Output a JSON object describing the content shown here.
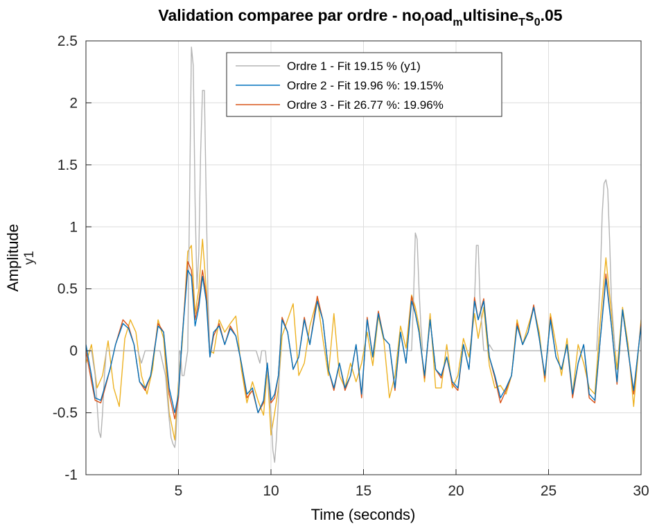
{
  "chart_data": {
    "type": "line",
    "title": "Validation comparee par ordre - no_load_multisine_T_s_0.05",
    "title_parts": {
      "a": "Validation comparee par ordre - no",
      "sub1": "l",
      "b": "oad",
      "sub2": "m",
      "c": "ultisine",
      "sub3": "T",
      "d": "s",
      "sub4": "0",
      "e": ".05"
    },
    "xlabel": "Time (seconds)",
    "ylabel": "Amplitude",
    "ylabel2": "y1",
    "xlim": [
      0,
      30
    ],
    "ylim": [
      -1,
      2.5
    ],
    "x_ticks": [
      "5",
      "10",
      "15",
      "20",
      "25",
      "30"
    ],
    "x_tick_values": [
      5,
      10,
      15,
      20,
      25,
      30
    ],
    "y_ticks": [
      "-1",
      "-0.5",
      "0",
      "0.5",
      "1",
      "1.5",
      "2",
      "2.5"
    ],
    "y_tick_values": [
      -1,
      -0.5,
      0,
      0.5,
      1,
      1.5,
      2,
      2.5
    ],
    "grid": true,
    "legend_position": "top-center",
    "series": [
      {
        "name": "Ordre 1 - Fit 19.15 % (y1)",
        "color": "#b3b3b3",
        "x": [
          0,
          0.3,
          0.5,
          0.7,
          0.8,
          0.9,
          1.0,
          1.1,
          1.5,
          2,
          2.5,
          2.8,
          3,
          3.2,
          3.5,
          4,
          4.3,
          4.5,
          4.6,
          4.7,
          4.8,
          4.85,
          5,
          5.05,
          5.1,
          5.2,
          5.3,
          5.5,
          5.6,
          5.7,
          5.8,
          5.9,
          6.0,
          6.1,
          6.2,
          6.3,
          6.4,
          6.5,
          6.6,
          6.7,
          6.8,
          6.9,
          7,
          7.5,
          8,
          8.5,
          9,
          9.2,
          9.4,
          9.5,
          9.7,
          10,
          10.1,
          10.2,
          10.3,
          10.4,
          10.5,
          11,
          12,
          13,
          14,
          15,
          16,
          17,
          17.4,
          17.6,
          17.7,
          17.8,
          17.9,
          18,
          18.1,
          18.2,
          18.4,
          18.5,
          19,
          20,
          20.5,
          20.8,
          21,
          21.1,
          21.2,
          21.3,
          21.5,
          21.6,
          21.7,
          21.8,
          22,
          23,
          24,
          25,
          26,
          26.5,
          27,
          27.3,
          27.5,
          27.6,
          27.8,
          27.9,
          28,
          28.1,
          28.2,
          28.3,
          28.4,
          28.6,
          29,
          30
        ],
        "y": [
          0,
          0,
          -0.2,
          -0.65,
          -0.7,
          -0.5,
          -0.2,
          0,
          0,
          0,
          0,
          0,
          -0.1,
          0,
          0,
          0,
          -0.2,
          -0.55,
          -0.7,
          -0.75,
          -0.78,
          -0.72,
          -0.3,
          0,
          0,
          -0.2,
          -0.2,
          0,
          1.2,
          2.45,
          2.3,
          1.2,
          0.5,
          0.8,
          1.6,
          2.1,
          2.1,
          1.2,
          0.4,
          0,
          0,
          0,
          0,
          0,
          0,
          0,
          0,
          0,
          -0.1,
          0,
          0,
          -0.5,
          -0.8,
          -0.9,
          -0.7,
          -0.4,
          0,
          0,
          0,
          0,
          0,
          0,
          0,
          0,
          0,
          0,
          0.4,
          0.95,
          0.9,
          0.5,
          0.2,
          0,
          0,
          0,
          0,
          0,
          0,
          0,
          0.4,
          0.85,
          0.85,
          0.4,
          0,
          0,
          0,
          0.05,
          0,
          0,
          0,
          0,
          0,
          0,
          0,
          0,
          0,
          0,
          0.6,
          1.1,
          1.35,
          1.38,
          1.3,
          0.9,
          0.4,
          0,
          0,
          0
        ]
      },
      {
        "name": "Ordre 2 - Fit 19.96 %: 19.15%",
        "color": "#0072bd",
        "x": [
          0,
          0.3,
          0.5,
          0.8,
          1,
          1.3,
          1.6,
          2,
          2.3,
          2.6,
          2.9,
          3.2,
          3.5,
          3.9,
          4.2,
          4.5,
          4.8,
          5,
          5.2,
          5.5,
          5.7,
          5.9,
          6.1,
          6.3,
          6.5,
          6.7,
          6.9,
          7.2,
          7.5,
          7.8,
          8.1,
          8.4,
          8.7,
          9,
          9.3,
          9.6,
          9.8,
          10,
          10.2,
          10.4,
          10.6,
          10.9,
          11.2,
          11.5,
          11.8,
          12.1,
          12.5,
          12.8,
          13.1,
          13.4,
          13.7,
          14,
          14.3,
          14.6,
          14.9,
          15.2,
          15.5,
          15.8,
          16.1,
          16.4,
          16.7,
          17,
          17.3,
          17.6,
          17.8,
          18,
          18.3,
          18.6,
          18.9,
          19.2,
          19.5,
          19.8,
          20.1,
          20.4,
          20.7,
          21,
          21.2,
          21.5,
          21.8,
          22.1,
          22.4,
          22.7,
          23,
          23.3,
          23.6,
          23.9,
          24.2,
          24.5,
          24.8,
          25.1,
          25.4,
          25.7,
          26,
          26.3,
          26.6,
          26.9,
          27.2,
          27.5,
          27.8,
          28.1,
          28.4,
          28.7,
          29,
          29.3,
          29.6,
          30
        ],
        "y": [
          0.05,
          -0.2,
          -0.38,
          -0.4,
          -0.3,
          -0.15,
          0.05,
          0.22,
          0.18,
          0.05,
          -0.25,
          -0.3,
          -0.2,
          0.2,
          0.15,
          -0.3,
          -0.5,
          -0.35,
          0.1,
          0.65,
          0.6,
          0.2,
          0.35,
          0.6,
          0.4,
          -0.05,
          0.15,
          0.2,
          0.05,
          0.18,
          0.12,
          -0.1,
          -0.35,
          -0.3,
          -0.5,
          -0.4,
          -0.1,
          -0.4,
          -0.35,
          -0.2,
          0.25,
          0.15,
          -0.15,
          -0.05,
          0.25,
          0.05,
          0.4,
          0.25,
          -0.15,
          -0.3,
          -0.1,
          -0.3,
          -0.2,
          0.05,
          -0.35,
          0.25,
          -0.05,
          0.3,
          0.1,
          0.05,
          -0.3,
          0.15,
          -0.1,
          0.4,
          0.3,
          0.15,
          -0.2,
          0.25,
          -0.15,
          -0.2,
          -0.05,
          -0.25,
          -0.3,
          0.05,
          -0.15,
          0.4,
          0.25,
          0.4,
          -0.05,
          -0.2,
          -0.38,
          -0.3,
          -0.2,
          0.2,
          0.05,
          0.15,
          0.35,
          0.1,
          -0.2,
          0.25,
          -0.05,
          -0.15,
          0.05,
          -0.35,
          -0.1,
          0.05,
          -0.35,
          -0.4,
          0.1,
          0.58,
          0.2,
          -0.25,
          0.33,
          0,
          -0.32,
          0.2
        ]
      },
      {
        "name": "Ordre 3 - Fit 26.77 %: 19.96%",
        "color": "#d95319",
        "x": [
          0,
          0.3,
          0.5,
          0.8,
          1,
          1.3,
          1.6,
          2,
          2.3,
          2.6,
          2.9,
          3.2,
          3.5,
          3.9,
          4.2,
          4.5,
          4.8,
          5,
          5.2,
          5.5,
          5.7,
          5.9,
          6.1,
          6.3,
          6.5,
          6.7,
          6.9,
          7.2,
          7.5,
          7.8,
          8.1,
          8.4,
          8.7,
          9,
          9.3,
          9.6,
          9.8,
          10,
          10.2,
          10.4,
          10.6,
          10.9,
          11.2,
          11.5,
          11.8,
          12.1,
          12.5,
          12.8,
          13.1,
          13.4,
          13.7,
          14,
          14.3,
          14.6,
          14.9,
          15.2,
          15.5,
          15.8,
          16.1,
          16.4,
          16.7,
          17,
          17.3,
          17.6,
          17.8,
          18,
          18.3,
          18.6,
          18.9,
          19.2,
          19.5,
          19.8,
          20.1,
          20.4,
          20.7,
          21,
          21.2,
          21.5,
          21.8,
          22.1,
          22.4,
          22.7,
          23,
          23.3,
          23.6,
          23.9,
          24.2,
          24.5,
          24.8,
          25.1,
          25.4,
          25.7,
          26,
          26.3,
          26.6,
          26.9,
          27.2,
          27.5,
          27.8,
          28.1,
          28.4,
          28.7,
          29,
          29.3,
          29.6,
          30
        ],
        "y": [
          0,
          -0.25,
          -0.4,
          -0.42,
          -0.32,
          -0.15,
          0.05,
          0.25,
          0.2,
          0.05,
          -0.25,
          -0.32,
          -0.2,
          0.22,
          0.15,
          -0.35,
          -0.55,
          -0.38,
          0.1,
          0.72,
          0.65,
          0.25,
          0.4,
          0.65,
          0.45,
          -0.05,
          0.12,
          0.22,
          0.05,
          0.2,
          0.12,
          -0.1,
          -0.38,
          -0.32,
          -0.5,
          -0.42,
          -0.1,
          -0.42,
          -0.38,
          -0.2,
          0.27,
          0.15,
          -0.15,
          -0.05,
          0.27,
          0.05,
          0.44,
          0.25,
          -0.15,
          -0.32,
          -0.1,
          -0.32,
          -0.2,
          0.05,
          -0.38,
          0.27,
          -0.05,
          0.32,
          0.1,
          0.05,
          -0.32,
          0.15,
          -0.1,
          0.44,
          0.3,
          0.15,
          -0.22,
          0.25,
          -0.15,
          -0.22,
          -0.05,
          -0.27,
          -0.32,
          0.05,
          -0.15,
          0.43,
          0.25,
          0.42,
          -0.05,
          -0.22,
          -0.42,
          -0.32,
          -0.2,
          0.22,
          0.05,
          0.15,
          0.37,
          0.1,
          -0.22,
          0.27,
          -0.05,
          -0.15,
          0.05,
          -0.38,
          -0.1,
          0.05,
          -0.38,
          -0.42,
          0.1,
          0.62,
          0.2,
          -0.27,
          0.33,
          0,
          -0.35,
          0.22
        ]
      },
      {
        "name": "",
        "color": "#edb120",
        "x": [
          0,
          0.3,
          0.6,
          0.9,
          1.2,
          1.5,
          1.8,
          2.1,
          2.4,
          2.7,
          3,
          3.3,
          3.6,
          3.9,
          4.2,
          4.5,
          4.8,
          5,
          5.2,
          5.5,
          5.7,
          5.9,
          6.1,
          6.3,
          6.5,
          6.7,
          6.9,
          7.2,
          7.5,
          7.8,
          8.1,
          8.4,
          8.7,
          9,
          9.3,
          9.6,
          9.8,
          10,
          10.2,
          10.4,
          10.6,
          10.9,
          11.2,
          11.5,
          11.8,
          12.1,
          12.5,
          12.8,
          13.1,
          13.4,
          13.7,
          14,
          14.3,
          14.6,
          14.9,
          15.2,
          15.5,
          15.8,
          16.1,
          16.4,
          16.7,
          17,
          17.3,
          17.6,
          17.8,
          18,
          18.3,
          18.6,
          18.9,
          19.2,
          19.5,
          19.8,
          20.1,
          20.4,
          20.7,
          21,
          21.2,
          21.5,
          21.8,
          22.1,
          22.4,
          22.7,
          23,
          23.3,
          23.6,
          23.9,
          24.2,
          24.5,
          24.8,
          25.1,
          25.4,
          25.7,
          26,
          26.3,
          26.6,
          26.9,
          27.2,
          27.5,
          27.8,
          28.1,
          28.4,
          28.7,
          29,
          29.3,
          29.6,
          30
        ],
        "y": [
          -0.1,
          0.05,
          -0.3,
          -0.2,
          0.08,
          -0.3,
          -0.45,
          0.1,
          0.25,
          0.15,
          -0.2,
          -0.35,
          -0.15,
          0.25,
          0.1,
          -0.5,
          -0.72,
          -0.25,
          0.05,
          0.8,
          0.85,
          0.3,
          0.5,
          0.9,
          0.5,
          0,
          -0.02,
          0.25,
          0.15,
          0.22,
          0.28,
          -0.15,
          -0.42,
          -0.25,
          -0.4,
          -0.52,
          -0.15,
          -0.68,
          -0.5,
          -0.3,
          0.12,
          0.25,
          0.38,
          -0.2,
          -0.1,
          0.2,
          0.42,
          0.1,
          -0.2,
          0.3,
          -0.2,
          -0.3,
          -0.1,
          -0.25,
          -0.1,
          0.15,
          -0.12,
          0.28,
          0.08,
          -0.38,
          -0.2,
          0.2,
          0.02,
          0.45,
          0.35,
          0.2,
          -0.25,
          0.3,
          -0.3,
          -0.3,
          0.05,
          -0.3,
          -0.2,
          0.1,
          -0.05,
          0.3,
          0.1,
          0.35,
          -0.12,
          -0.3,
          -0.28,
          -0.35,
          -0.2,
          0.25,
          0.05,
          0.2,
          0.35,
          0.15,
          -0.25,
          0.3,
          0.05,
          -0.2,
          0.1,
          -0.35,
          0.05,
          -0.1,
          -0.3,
          -0.35,
          0.25,
          0.75,
          0.3,
          -0.15,
          0.35,
          0.05,
          -0.45,
          0.25
        ]
      }
    ]
  }
}
